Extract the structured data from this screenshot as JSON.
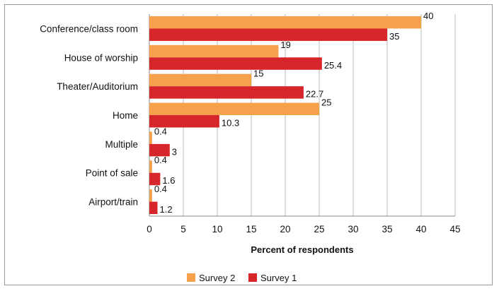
{
  "chart_data": {
    "type": "bar",
    "orientation": "horizontal",
    "categories": [
      "Conference/class room",
      "House of worship",
      "Theater/Auditorium",
      "Home",
      "Multiple",
      "Point of sale",
      "Airport/train"
    ],
    "series": [
      {
        "name": "Survey 2",
        "color": "#f5a04a",
        "values": [
          40,
          19,
          15,
          25,
          0.4,
          0.4,
          0.4
        ]
      },
      {
        "name": "Survey 1",
        "color": "#d7262b",
        "values": [
          35,
          25.4,
          22.7,
          10.3,
          3,
          1.6,
          1.2
        ]
      }
    ],
    "xlabel": "Percent of respondents",
    "ylabel": "",
    "xlim": [
      0,
      45
    ],
    "xticks": [
      "0",
      "5",
      "10",
      "15",
      "20",
      "25",
      "30",
      "35",
      "40",
      "45"
    ],
    "grid": "vertical",
    "legend": "bottom"
  }
}
